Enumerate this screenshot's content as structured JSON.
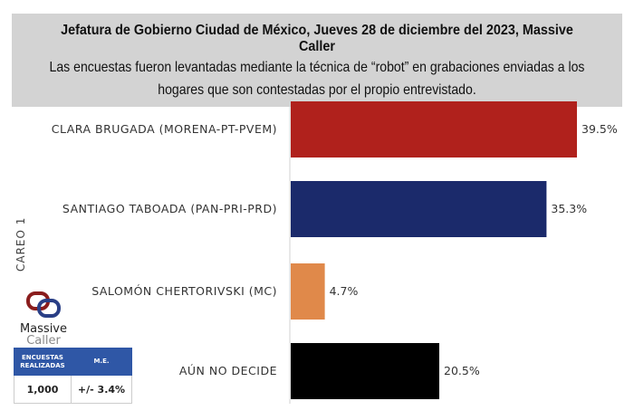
{
  "header": {
    "title": "Jefatura de Gobierno Ciudad de México, Jueves 28 de diciembre del 2023, Massive Caller",
    "subtitle_line1": "Las encuestas fueron levantadas mediante la técnica de “robot” en grabaciones enviadas a los",
    "subtitle_line2": "hogares que son contestadas por el propio entrevistado."
  },
  "side_label": "CAREO 1",
  "logo": {
    "line1": "Massive",
    "line2": "Caller"
  },
  "sample_table": {
    "headers": [
      "ENCUESTAS REALIZADAS",
      "M.E."
    ],
    "values": [
      "1,000",
      "+/- 3.4%"
    ],
    "header_color": "#2f57a6"
  },
  "chart_data": {
    "type": "bar",
    "orientation": "horizontal",
    "categories": [
      "CLARA BRUGADA (MORENA-PT-PVEM)",
      "SANTIAGO TABOADA (PAN-PRI-PRD)",
      "SALOMÓN CHERTORIVSKI (MC)",
      "AÚN NO DECIDE"
    ],
    "values": [
      39.5,
      35.3,
      4.7,
      20.5
    ],
    "labels": [
      "39.5%",
      "35.3%",
      "4.7%",
      "20.5%"
    ],
    "colors": [
      "#b0211c",
      "#1b2a6b",
      "#e0894a",
      "#000000"
    ],
    "unit": "%",
    "xlim": [
      0,
      40
    ],
    "grid": false
  }
}
